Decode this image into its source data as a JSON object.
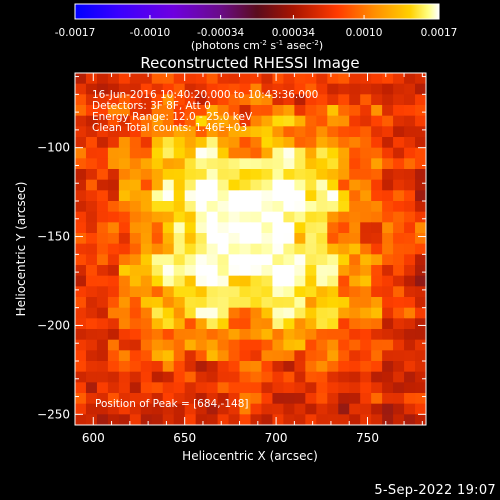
{
  "chart_data": {
    "type": "heatmap",
    "title": "Reconstructed RHESSI Image",
    "xlabel": "Heliocentric X (arcsec)",
    "ylabel": "Heliocentric Y (arcsec)",
    "xlim": [
      590,
      782
    ],
    "ylim": [
      -256,
      -58
    ],
    "x_ticks": [
      600,
      650,
      700,
      750
    ],
    "y_ticks": [
      -100,
      -150,
      -200,
      -250
    ],
    "annotations": [
      "16-Jun-2016 10:40:20.000 to 10:43:36.000",
      "Detectors: 3F 8F, Att 0",
      "Energy Range: 12.0 - 25.0 keV",
      "Clean    Total counts: 1.46E+03"
    ],
    "peak_label": "Position of Peak = [684,-148]",
    "peak": [
      684,
      -148
    ],
    "colorbar": {
      "ticks": [
        "-0.0017",
        "-0.0010",
        "-0.00034",
        "0.00034",
        "0.0010",
        "0.0017"
      ],
      "range": [
        -0.0017,
        0.0017
      ],
      "label_pre": "(photons cm",
      "label_exp1": "-2",
      "label_mid": " s",
      "label_exp2": "-1",
      "label_mid2": " asec",
      "label_exp3": "-2",
      "label_post": ")"
    },
    "colormap": [
      "#0000ff",
      "#4a00ff",
      "#7a00d0",
      "#7a1080",
      "#8a1818",
      "#c02000",
      "#ff4000",
      "#ff9000",
      "#ffd800",
      "#ffffa0",
      "#ffffff"
    ]
  },
  "footer_date": "5-Sep-2022 19:07"
}
